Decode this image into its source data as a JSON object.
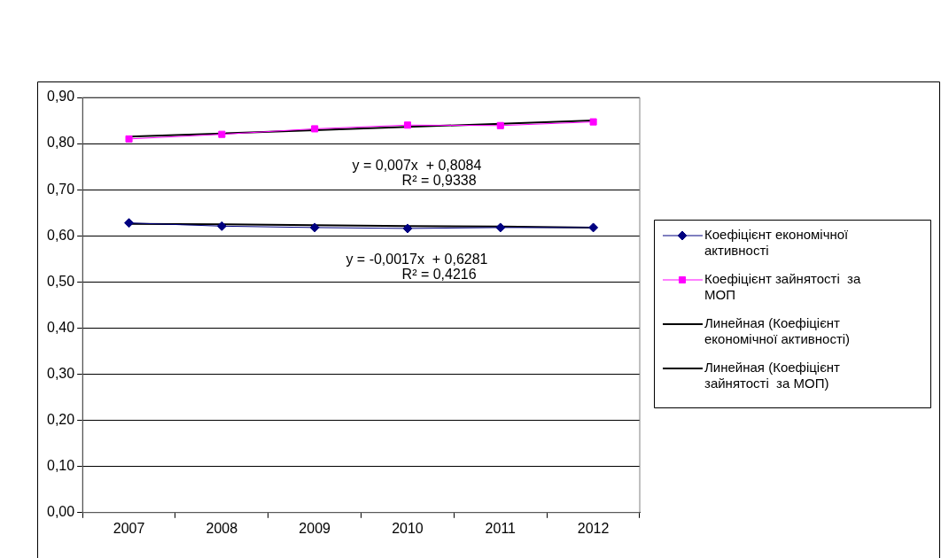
{
  "chart_data": {
    "type": "line",
    "categories": [
      "2007",
      "2008",
      "2009",
      "2010",
      "2011",
      "2012"
    ],
    "series": [
      {
        "name": "Коефіцієнт економічної активності",
        "color": "#000080",
        "marker": "diamond",
        "values": [
          0.628,
          0.621,
          0.618,
          0.616,
          0.618,
          0.618
        ]
      },
      {
        "name": "Коефіцієнт зайнятості  за МОП",
        "color": "#ff00ff",
        "marker": "square",
        "values": [
          0.81,
          0.82,
          0.832,
          0.84,
          0.839,
          0.847
        ]
      },
      {
        "name": "Линейная (Коефіцієнт економічної активності)",
        "color": "#000000",
        "marker": "none",
        "values": [
          0.626,
          0.625,
          0.623,
          0.621,
          0.62,
          0.618
        ]
      },
      {
        "name": "Линейная (Коефіцієнт зайнятості  за МОП)",
        "color": "#000000",
        "marker": "none",
        "values": [
          0.815,
          0.822,
          0.829,
          0.836,
          0.843,
          0.85
        ]
      }
    ],
    "ylim": [
      0,
      0.9
    ],
    "yticks": [
      {
        "value": 0,
        "label": "0,00"
      },
      {
        "value": 0.1,
        "label": "0,10"
      },
      {
        "value": 0.2,
        "label": "0,20"
      },
      {
        "value": 0.3,
        "label": "0,30"
      },
      {
        "value": 0.4,
        "label": "0,40"
      },
      {
        "value": 0.5,
        "label": "0,50"
      },
      {
        "value": 0.6,
        "label": "0,60"
      },
      {
        "value": 0.7,
        "label": "0,70"
      },
      {
        "value": 0.8,
        "label": "0,80"
      },
      {
        "value": 0.9,
        "label": "0,90"
      }
    ],
    "grid": "y",
    "legend": "right",
    "line_style": "solid",
    "annotations": [
      "y = 0,007x  + 0,8084",
      "R² = 0,9338",
      "y = -0,0017x  + 0,6281",
      "R² = 0,4216"
    ]
  }
}
